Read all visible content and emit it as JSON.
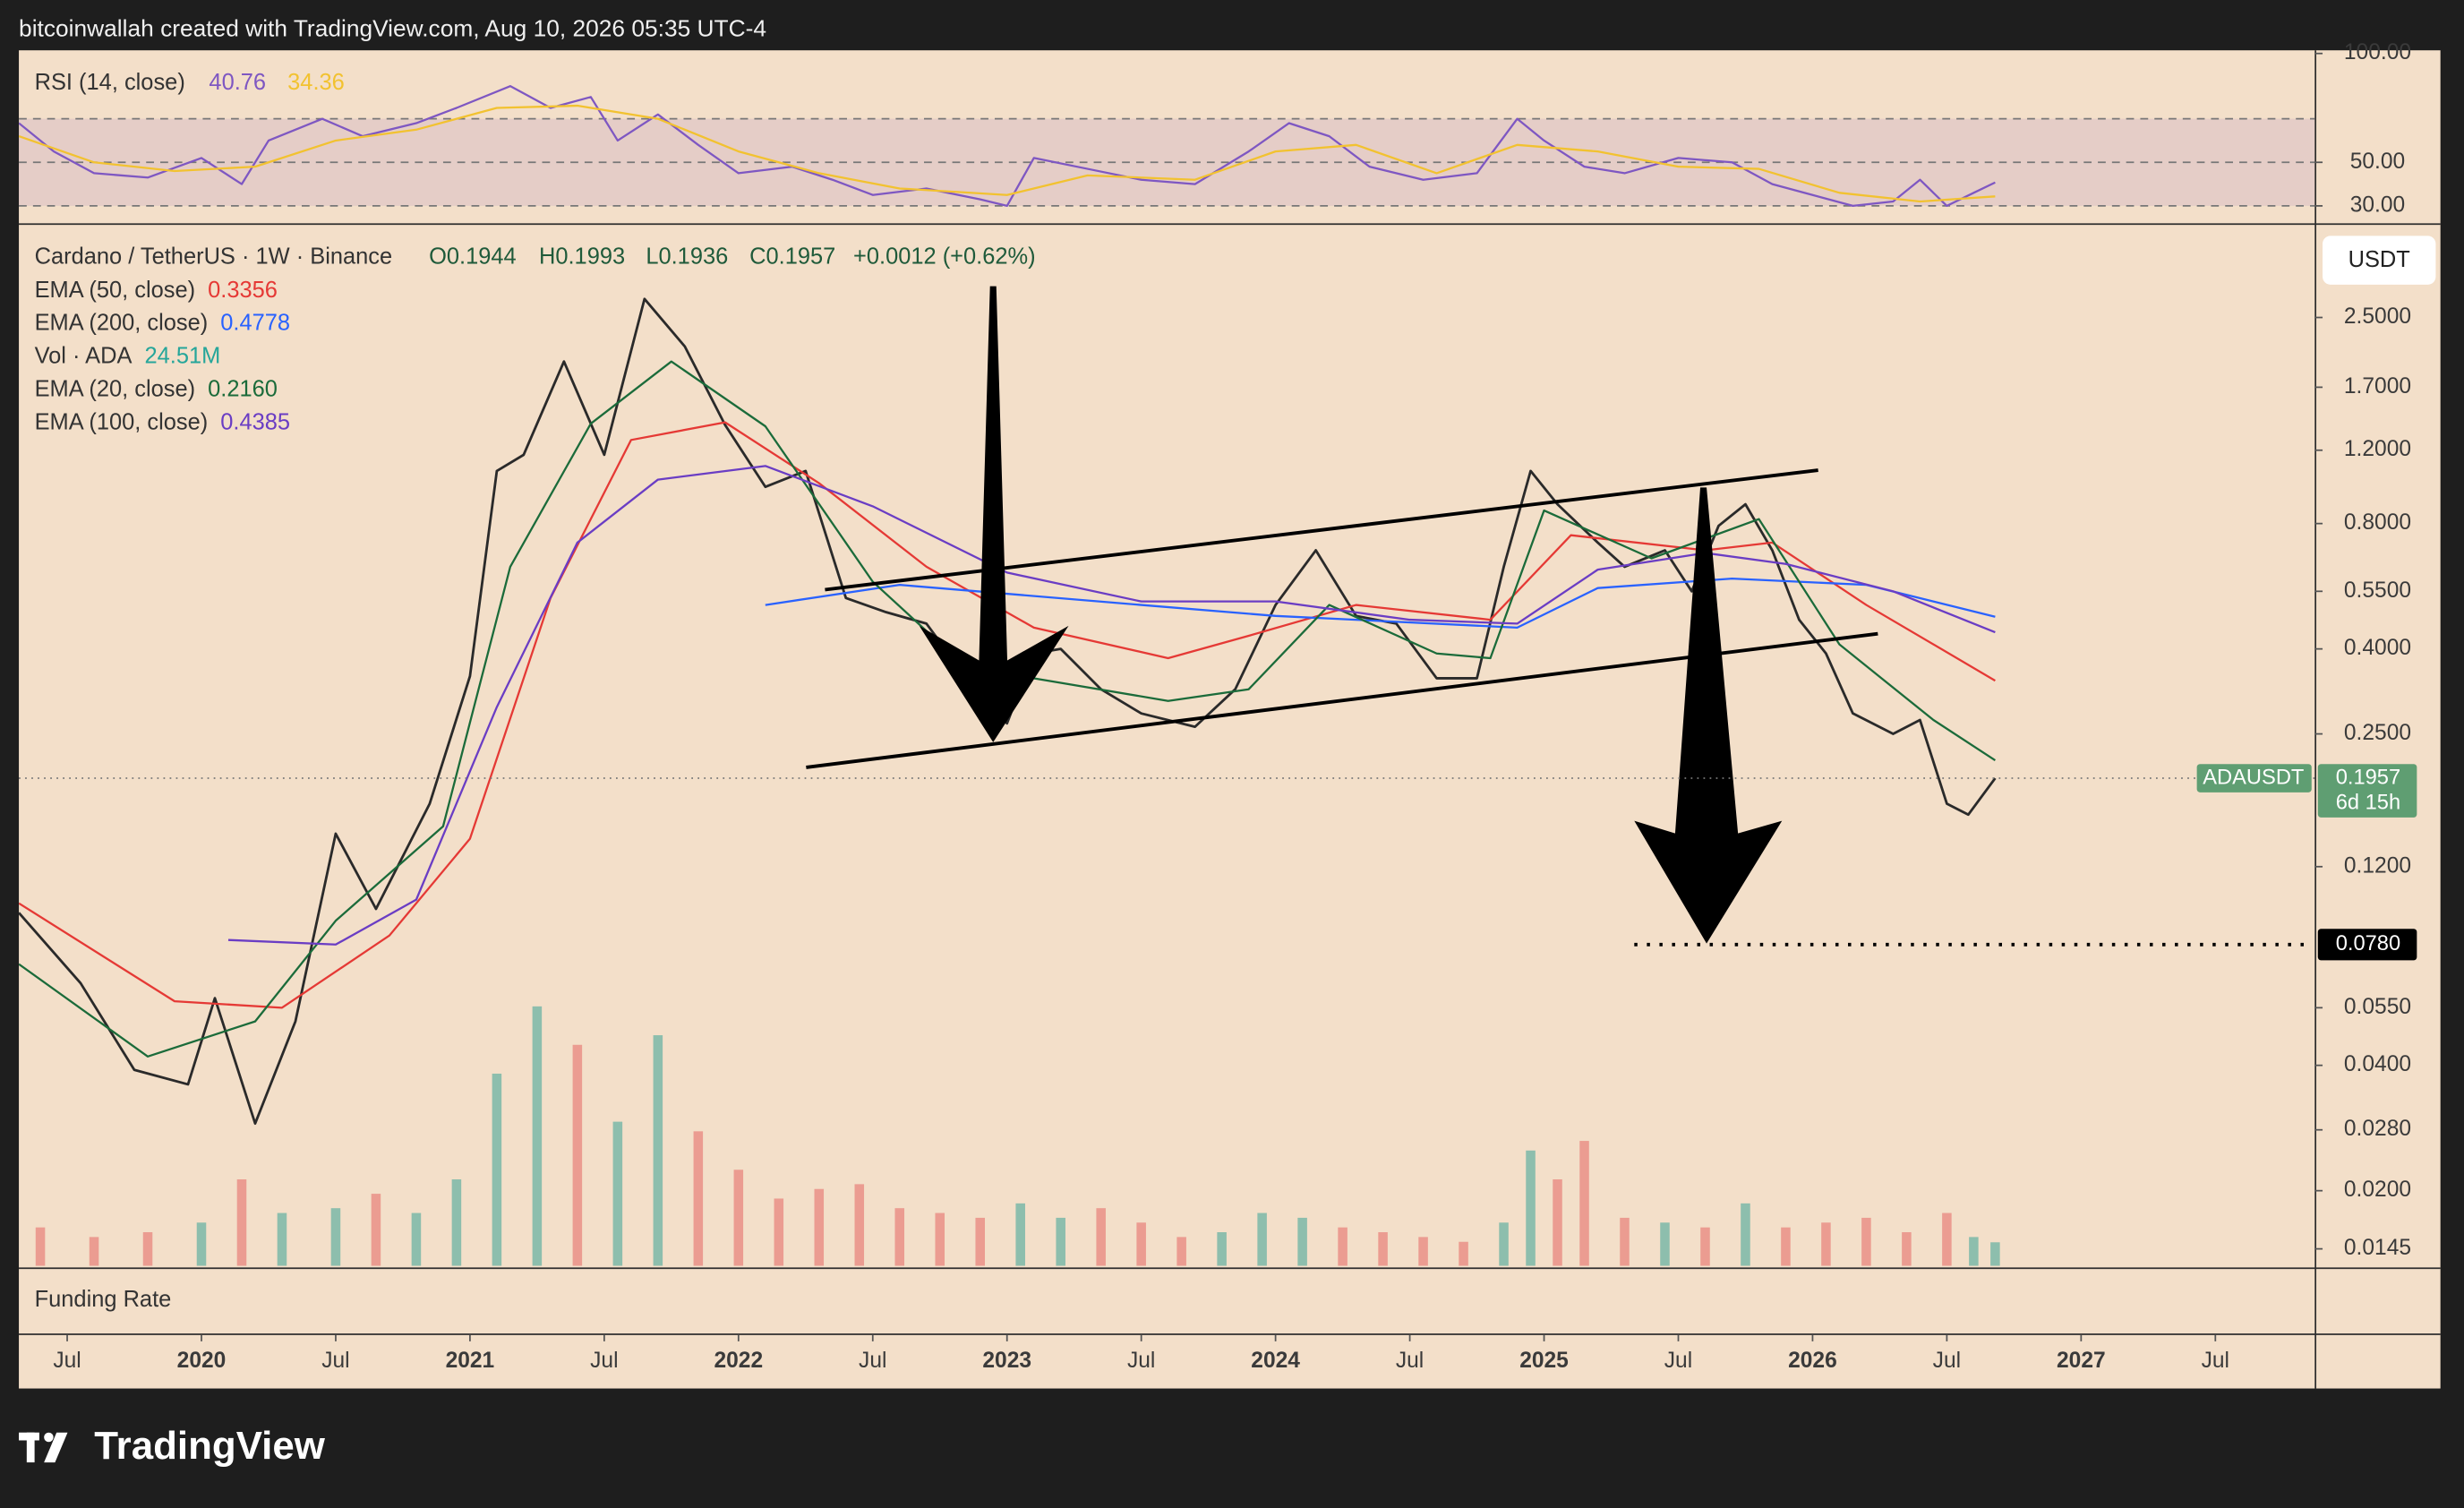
{
  "header": {
    "text": "bitcoinwallah created with TradingView.com, Aug 10, 2026 05:35 UTC-4"
  },
  "chart_data": [
    {
      "type": "line",
      "title": "RSI (14, close)",
      "xlim": [
        2019.32,
        2027.87
      ],
      "ylim": [
        22,
        100
      ],
      "yticks": [
        {
          "value": 100,
          "label": "100.00"
        },
        {
          "value": 50,
          "label": "50.00"
        },
        {
          "value": 30,
          "label": "30.00"
        }
      ],
      "levels": [
        70,
        50,
        30
      ],
      "band": [
        30,
        70
      ],
      "band_color": "#9c6fc0",
      "series": [
        {
          "legend_value": "40.76",
          "color": "#7e57c2",
          "x": [
            2019.32,
            2019.45,
            2019.6,
            2019.8,
            2020.0,
            2020.15,
            2020.25,
            2020.45,
            2020.6,
            2020.8,
            2020.95,
            2021.15,
            2021.3,
            2021.45,
            2021.55,
            2021.7,
            2021.85,
            2022.0,
            2022.2,
            2022.35,
            2022.5,
            2022.7,
            2022.9,
            2023.0,
            2023.1,
            2023.3,
            2023.5,
            2023.7,
            2023.9,
            2024.05,
            2024.2,
            2024.35,
            2024.55,
            2024.75,
            2024.9,
            2025.0,
            2025.15,
            2025.3,
            2025.5,
            2025.7,
            2025.85,
            2026.0,
            2026.15,
            2026.3,
            2026.4,
            2026.5,
            2026.6,
            2026.68
          ],
          "values": [
            68,
            55,
            45,
            43,
            52,
            40,
            60,
            70,
            62,
            68,
            75,
            85,
            75,
            80,
            60,
            72,
            58,
            45,
            48,
            42,
            35,
            38,
            33,
            30,
            52,
            47,
            42,
            40,
            55,
            68,
            62,
            48,
            42,
            45,
            70,
            60,
            48,
            45,
            52,
            50,
            40,
            35,
            30,
            32,
            42,
            30,
            36,
            40.76
          ]
        },
        {
          "legend_value": "34.36",
          "color": "#f2c230",
          "x": [
            2019.32,
            2019.6,
            2019.9,
            2020.2,
            2020.5,
            2020.8,
            2021.1,
            2021.4,
            2021.7,
            2022.0,
            2022.3,
            2022.6,
            2023.0,
            2023.3,
            2023.7,
            2024.0,
            2024.3,
            2024.6,
            2024.9,
            2025.2,
            2025.5,
            2025.8,
            2026.1,
            2026.4,
            2026.68
          ],
          "values": [
            62,
            50,
            46,
            48,
            60,
            65,
            75,
            76,
            70,
            55,
            45,
            38,
            35,
            44,
            42,
            55,
            58,
            45,
            58,
            55,
            48,
            47,
            36,
            32,
            34.36
          ]
        }
      ]
    },
    {
      "type": "line",
      "title": "Cardano / TetherUS · 1W · Binance",
      "ohlc": [
        "O0.1944",
        "H0.1993",
        "L0.1936",
        "C0.1957"
      ],
      "change": "+0.0012 (+0.62%)",
      "log_scale": true,
      "grid": false,
      "xlim": [
        2019.32,
        2027.87
      ],
      "xticks": [
        {
          "value": 2019.5,
          "label": "Jul"
        },
        2020,
        {
          "value": 2020.5,
          "label": "Jul"
        },
        2021,
        {
          "value": 2021.5,
          "label": "Jul"
        },
        2022,
        {
          "value": 2022.5,
          "label": "Jul"
        },
        2023,
        {
          "value": 2023.5,
          "label": "Jul"
        },
        2024,
        {
          "value": 2024.5,
          "label": "Jul"
        },
        2025,
        {
          "value": 2025.5,
          "label": "Jul"
        },
        2026,
        {
          "value": 2026.5,
          "label": "Jul"
        },
        2027,
        {
          "value": 2027.5,
          "label": "Jul"
        }
      ],
      "ylim": [
        0.0132,
        4.1
      ],
      "yticks": [
        {
          "value": 2.5,
          "label": "2.5000"
        },
        {
          "value": 1.7,
          "label": "1.7000"
        },
        {
          "value": 1.2,
          "label": "1.2000"
        },
        {
          "value": 0.8,
          "label": "0.8000"
        },
        {
          "value": 0.55,
          "label": "0.5500"
        },
        {
          "value": 0.4,
          "label": "0.4000"
        },
        {
          "value": 0.25,
          "label": "0.2500"
        },
        {
          "value": 0.12,
          "label": "0.1200"
        },
        {
          "value": 0.055,
          "label": "0.0550"
        },
        {
          "value": 0.04,
          "label": "0.0400"
        },
        {
          "value": 0.028,
          "label": "0.0280"
        },
        {
          "value": 0.02,
          "label": "0.0200"
        },
        {
          "value": 0.0145,
          "label": "0.0145"
        }
      ],
      "y2lim": [
        0,
        1080
      ],
      "series": [
        {
          "color": "#2a2a2a",
          "x": [
            2019.32,
            2019.55,
            2019.75,
            2019.95,
            2020.05,
            2020.2,
            2020.35,
            2020.5,
            2020.65,
            2020.85,
            2021.0,
            2021.1,
            2021.2,
            2021.35,
            2021.5,
            2021.65,
            2021.8,
            2021.95,
            2022.1,
            2022.25,
            2022.4,
            2022.55,
            2022.7,
            2022.85,
            2023.0,
            2023.1,
            2023.2,
            2023.35,
            2023.5,
            2023.7,
            2023.85,
            2024.0,
            2024.15,
            2024.3,
            2024.45,
            2024.6,
            2024.75,
            2024.85,
            2024.95,
            2025.05,
            2025.2,
            2025.3,
            2025.45,
            2025.55,
            2025.65,
            2025.75,
            2025.85,
            2025.95,
            2026.05,
            2026.15,
            2026.3,
            2026.4,
            2026.5,
            2026.58,
            2026.68
          ],
          "values": [
            0.093,
            0.063,
            0.039,
            0.036,
            0.058,
            0.029,
            0.051,
            0.144,
            0.095,
            0.17,
            0.344,
            1.07,
            1.17,
            1.96,
            1.17,
            2.77,
            2.13,
            1.38,
            0.98,
            1.07,
            0.53,
            0.49,
            0.46,
            0.34,
            0.265,
            0.39,
            0.4,
            0.32,
            0.28,
            0.26,
            0.32,
            0.51,
            0.69,
            0.48,
            0.46,
            0.34,
            0.34,
            0.63,
            1.07,
            0.89,
            0.72,
            0.63,
            0.69,
            0.55,
            0.79,
            0.89,
            0.69,
            0.47,
            0.39,
            0.28,
            0.25,
            0.27,
            0.17,
            0.16,
            0.1957
          ]
        },
        {
          "name": "EMA (50, close)",
          "legend_value": "0.3356",
          "color": "#e53935",
          "x": [
            2019.32,
            2019.9,
            2020.3,
            2020.7,
            2021.0,
            2021.3,
            2021.6,
            2021.95,
            2022.3,
            2022.7,
            2023.1,
            2023.6,
            2023.9,
            2024.3,
            2024.8,
            2025.1,
            2025.6,
            2025.85,
            2026.2,
            2026.68
          ],
          "values": [
            0.098,
            0.057,
            0.055,
            0.082,
            0.14,
            0.53,
            1.27,
            1.4,
            1.0,
            0.63,
            0.45,
            0.38,
            0.43,
            0.51,
            0.47,
            0.75,
            0.69,
            0.72,
            0.51,
            0.3356
          ]
        },
        {
          "name": "EMA (200, close)",
          "legend_value": "0.4778",
          "color": "#2962ff",
          "x": [
            2022.1,
            2022.6,
            2023.5,
            2024.0,
            2024.9,
            2025.2,
            2025.7,
            2026.2,
            2026.68
          ],
          "values": [
            0.51,
            0.57,
            0.51,
            0.48,
            0.45,
            0.56,
            0.59,
            0.57,
            0.4778
          ]
        },
        {
          "name": "Vol · ADA",
          "legend_value": "24.51M",
          "color": "#26a69a",
          "type": "bar",
          "axis": "y2",
          "x": [
            2019.4,
            2019.6,
            2019.8,
            2020.0,
            2020.15,
            2020.3,
            2020.5,
            2020.65,
            2020.8,
            2020.95,
            2021.1,
            2021.25,
            2021.4,
            2021.55,
            2021.7,
            2021.85,
            2022.0,
            2022.15,
            2022.3,
            2022.45,
            2022.6,
            2022.75,
            2022.9,
            2023.05,
            2023.2,
            2023.35,
            2023.5,
            2023.65,
            2023.8,
            2023.95,
            2024.1,
            2024.25,
            2024.4,
            2024.55,
            2024.7,
            2024.85,
            2024.95,
            2025.05,
            2025.15,
            2025.3,
            2025.45,
            2025.6,
            2025.75,
            2025.9,
            2026.05,
            2026.2,
            2026.35,
            2026.5,
            2026.6,
            2026.68
          ],
          "values": [
            40,
            30,
            35,
            45,
            90,
            55,
            60,
            75,
            55,
            90,
            200,
            270,
            230,
            150,
            240,
            140,
            100,
            70,
            80,
            85,
            60,
            55,
            50,
            65,
            50,
            60,
            45,
            30,
            35,
            55,
            50,
            40,
            35,
            30,
            25,
            45,
            120,
            90,
            130,
            50,
            45,
            40,
            65,
            40,
            45,
            50,
            35,
            55,
            30,
            24.51
          ],
          "colors": [
            "#e8857d",
            "#e8857d",
            "#e8857d",
            "#6bb3a3",
            "#e8857d",
            "#6bb3a3",
            "#6bb3a3",
            "#e8857d",
            "#6bb3a3",
            "#6bb3a3",
            "#6bb3a3",
            "#6bb3a3",
            "#e8857d",
            "#6bb3a3",
            "#6bb3a3",
            "#e8857d",
            "#e8857d",
            "#e8857d",
            "#e8857d",
            "#e8857d",
            "#e8857d",
            "#e8857d",
            "#e8857d",
            "#6bb3a3",
            "#6bb3a3",
            "#e8857d",
            "#e8857d",
            "#e8857d",
            "#6bb3a3",
            "#6bb3a3",
            "#6bb3a3",
            "#e8857d",
            "#e8857d",
            "#e8857d",
            "#e8857d",
            "#6bb3a3",
            "#6bb3a3",
            "#e8857d",
            "#e8857d",
            "#e8857d",
            "#6bb3a3",
            "#e8857d",
            "#6bb3a3",
            "#e8857d",
            "#e8857d",
            "#e8857d",
            "#e8857d",
            "#e8857d",
            "#6bb3a3",
            "#6bb3a3"
          ]
        },
        {
          "name": "EMA (20, close)",
          "legend_value": "0.2160",
          "color": "#1b6b3a",
          "x": [
            2019.32,
            2019.8,
            2020.2,
            2020.5,
            2020.9,
            2021.15,
            2021.45,
            2021.75,
            2022.1,
            2022.5,
            2022.85,
            2023.1,
            2023.6,
            2023.9,
            2024.2,
            2024.6,
            2024.8,
            2025.0,
            2025.4,
            2025.8,
            2026.1,
            2026.45,
            2026.68
          ],
          "values": [
            0.07,
            0.042,
            0.051,
            0.089,
            0.15,
            0.63,
            1.39,
            1.96,
            1.37,
            0.58,
            0.36,
            0.34,
            0.3,
            0.32,
            0.51,
            0.39,
            0.38,
            0.86,
            0.66,
            0.82,
            0.41,
            0.27,
            0.216
          ]
        },
        {
          "name": "EMA (100, close)",
          "legend_value": "0.4385",
          "color": "#6a3dc4",
          "x": [
            2020.1,
            2020.5,
            2020.8,
            2021.1,
            2021.4,
            2021.7,
            2022.1,
            2022.5,
            2023.0,
            2023.5,
            2024.0,
            2024.5,
            2024.9,
            2025.2,
            2025.6,
            2025.9,
            2026.3,
            2026.68
          ],
          "values": [
            0.08,
            0.078,
            0.1,
            0.29,
            0.72,
            1.02,
            1.1,
            0.88,
            0.61,
            0.52,
            0.52,
            0.47,
            0.46,
            0.62,
            0.68,
            0.64,
            0.55,
            0.4385
          ]
        }
      ],
      "price_label": {
        "symbol": "ADAUSDT",
        "value": 0.1957,
        "countdown": "6d 15h",
        "color": "#5f9e72"
      },
      "target": {
        "value": 0.078,
        "label": "0.0780"
      },
      "currency": "USDT"
    }
  ],
  "funding_pane": {
    "title": "Funding Rate"
  },
  "footer": {
    "brand": "TradingView"
  }
}
